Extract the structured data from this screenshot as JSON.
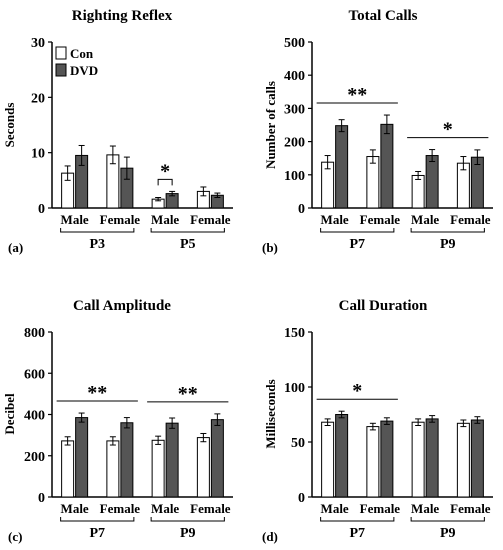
{
  "colors": {
    "con": "#ffffff",
    "dvd": "#555555",
    "stroke": "#000000"
  },
  "legend": {
    "labels": [
      "Con",
      "DVD"
    ]
  },
  "chart_data": [
    {
      "type": "bar",
      "panel_label": "(a)",
      "title": "Righting Reflex",
      "ylabel": "Seconds",
      "ylim": [
        0,
        30
      ],
      "yticks": [
        "0",
        "10",
        "20",
        "30"
      ],
      "categories": [
        "Male",
        "Female",
        "Male",
        "Female"
      ],
      "groups": [
        "P3",
        "P5"
      ],
      "series": [
        {
          "name": "Con",
          "values": [
            6.3,
            9.6,
            1.6,
            3.0
          ],
          "errors": [
            1.3,
            1.6,
            0.3,
            0.8
          ]
        },
        {
          "name": "DVD",
          "values": [
            9.5,
            7.2,
            2.6,
            2.3
          ],
          "errors": [
            1.8,
            2.0,
            0.4,
            0.4
          ]
        }
      ],
      "significance": [
        {
          "label": "*",
          "category_index": 2,
          "type": "bracket"
        }
      ]
    },
    {
      "type": "bar",
      "panel_label": "(b)",
      "title": "Total Calls",
      "ylabel": "Number of calls",
      "ylim": [
        0,
        500
      ],
      "yticks": [
        "0",
        "100",
        "200",
        "300",
        "400",
        "500"
      ],
      "categories": [
        "Male",
        "Female",
        "Male",
        "Female"
      ],
      "groups": [
        "P7",
        "P9"
      ],
      "series": [
        {
          "name": "Con",
          "values": [
            138,
            155,
            98,
            135
          ],
          "errors": [
            20,
            20,
            12,
            20
          ]
        },
        {
          "name": "DVD",
          "values": [
            248,
            252,
            158,
            153
          ],
          "errors": [
            18,
            28,
            18,
            22
          ]
        }
      ],
      "significance": [
        {
          "label": "**",
          "group_index": 0,
          "type": "line"
        },
        {
          "label": "*",
          "group_index": 1,
          "type": "line"
        }
      ]
    },
    {
      "type": "bar",
      "panel_label": "(c)",
      "title": "Call Amplitude",
      "ylabel": "Decibel",
      "ylim": [
        0,
        800
      ],
      "yticks": [
        "0",
        "200",
        "400",
        "600",
        "800"
      ],
      "categories": [
        "Male",
        "Female",
        "Male",
        "Female"
      ],
      "groups": [
        "P7",
        "P9"
      ],
      "series": [
        {
          "name": "Con",
          "values": [
            272,
            272,
            275,
            288
          ],
          "errors": [
            20,
            20,
            20,
            20
          ]
        },
        {
          "name": "DVD",
          "values": [
            385,
            360,
            358,
            375
          ],
          "errors": [
            22,
            25,
            25,
            28
          ]
        }
      ],
      "significance": [
        {
          "label": "**",
          "group_index": 0,
          "type": "line"
        },
        {
          "label": "**",
          "group_index": 1,
          "type": "line"
        }
      ]
    },
    {
      "type": "bar",
      "panel_label": "(d)",
      "title": "Call Duration",
      "ylabel": "Milliseconds",
      "ylim": [
        0,
        150
      ],
      "yticks": [
        "0",
        "50",
        "100",
        "150"
      ],
      "categories": [
        "Male",
        "Female",
        "Male",
        "Female"
      ],
      "groups": [
        "P7",
        "P9"
      ],
      "series": [
        {
          "name": "Con",
          "values": [
            68,
            64,
            68,
            67
          ],
          "errors": [
            3,
            3,
            3,
            3
          ]
        },
        {
          "name": "DVD",
          "values": [
            75,
            69,
            71,
            70
          ],
          "errors": [
            3,
            3,
            3,
            3
          ]
        }
      ],
      "significance": [
        {
          "label": "*",
          "group_index": 0,
          "type": "line"
        }
      ]
    }
  ]
}
